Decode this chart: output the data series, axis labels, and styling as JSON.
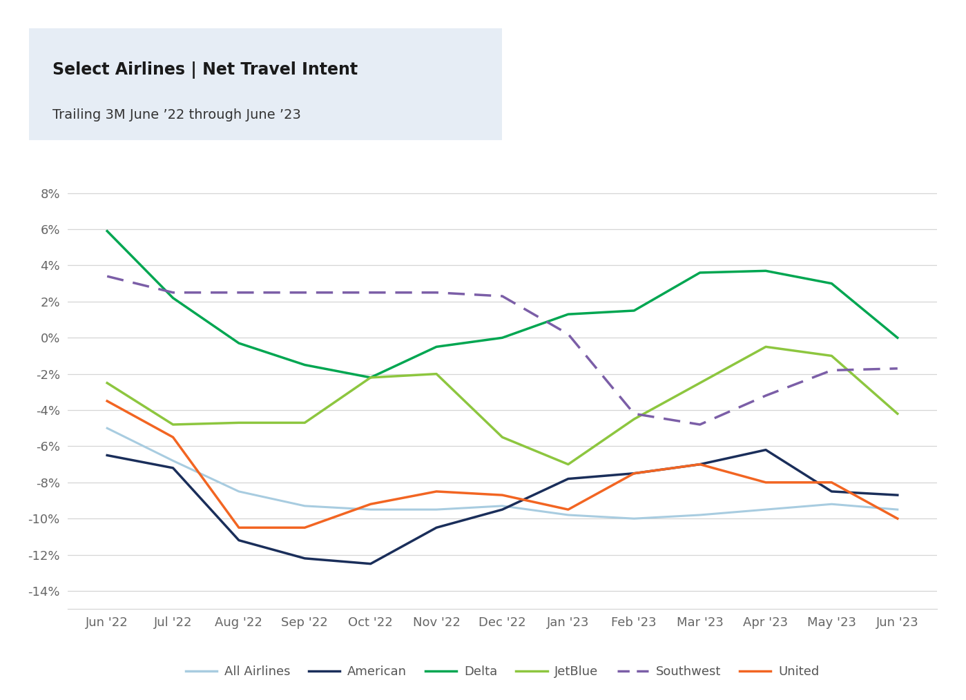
{
  "title_bold": "Select Airlines | Net Travel Intent",
  "title_sub": "Trailing 3M June ’22 through June ’23",
  "x_labels": [
    "Jun '22",
    "Jul '22",
    "Aug '22",
    "Sep '22",
    "Oct '22",
    "Nov '22",
    "Dec '22",
    "Jan '23",
    "Feb '23",
    "Mar '23",
    "Apr '23",
    "May '23",
    "Jun '23"
  ],
  "y_ticks": [
    -14,
    -12,
    -10,
    -8,
    -6,
    -4,
    -2,
    0,
    2,
    4,
    6,
    8
  ],
  "y_tick_labels": [
    "-14%",
    "-12%",
    "-10%",
    "-8%",
    "-6%",
    "-4%",
    "-2%",
    "0%",
    "2%",
    "4%",
    "6%",
    "8%"
  ],
  "series": {
    "All Airlines": {
      "color": "#a8cce0",
      "linestyle": "solid",
      "linewidth": 2.2,
      "values": [
        -5.0,
        -6.8,
        -8.5,
        -9.3,
        -9.5,
        -9.5,
        -9.3,
        -9.8,
        -10.0,
        -9.8,
        -9.5,
        -9.2,
        -9.5
      ]
    },
    "American": {
      "color": "#1a2e5a",
      "linestyle": "solid",
      "linewidth": 2.5,
      "values": [
        -6.5,
        -7.2,
        -11.2,
        -12.2,
        -12.5,
        -10.5,
        -9.5,
        -7.8,
        -7.5,
        -7.0,
        -6.2,
        -8.5,
        -8.7
      ]
    },
    "Delta": {
      "color": "#00a651",
      "linestyle": "solid",
      "linewidth": 2.5,
      "values": [
        5.9,
        2.2,
        -0.3,
        -1.5,
        -2.2,
        -0.5,
        0.0,
        1.3,
        1.5,
        3.6,
        3.7,
        3.0,
        0.0
      ]
    },
    "JetBlue": {
      "color": "#8dc63f",
      "linestyle": "solid",
      "linewidth": 2.5,
      "values": [
        -2.5,
        -4.8,
        -4.7,
        -4.7,
        -2.2,
        -2.0,
        -5.5,
        -7.0,
        -4.5,
        -2.5,
        -0.5,
        -1.0,
        -4.2
      ]
    },
    "Southwest": {
      "color": "#7b5ea7",
      "linestyle": "dashed",
      "linewidth": 2.5,
      "values": [
        3.4,
        2.5,
        2.5,
        2.5,
        2.5,
        2.5,
        2.3,
        0.2,
        -4.2,
        -4.8,
        -3.2,
        -1.8,
        -1.7
      ]
    },
    "United": {
      "color": "#f26522",
      "linestyle": "solid",
      "linewidth": 2.5,
      "values": [
        -3.5,
        -5.5,
        -10.5,
        -10.5,
        -9.2,
        -8.5,
        -8.7,
        -9.5,
        -7.5,
        -7.0,
        -8.0,
        -8.0,
        -10.0
      ]
    }
  },
  "background_color": "#ffffff",
  "grid_color": "#d5d5d5",
  "title_box_color": "#e6edf5",
  "ylim": [
    -15,
    9
  ],
  "legend_order": [
    "All Airlines",
    "American",
    "Delta",
    "JetBlue",
    "Southwest",
    "United"
  ]
}
